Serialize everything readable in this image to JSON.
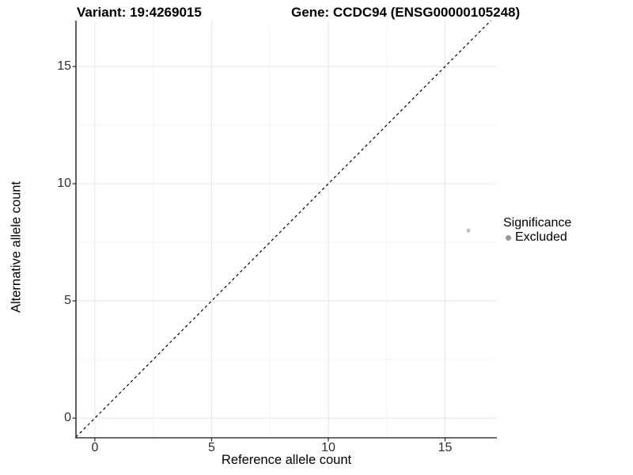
{
  "chart_data": {
    "type": "scatter",
    "title_left": "Variant: 19:4269015",
    "title_right": "Gene: CCDC94 (ENSG00000105248)",
    "xlabel": "Reference allele count",
    "ylabel": "Alternative allele count",
    "x_ticks": [
      0,
      5,
      10,
      15
    ],
    "y_ticks": [
      0,
      5,
      10,
      15
    ],
    "x_minor": [
      2.5,
      7.5,
      12.5
    ],
    "y_minor": [
      2.5,
      7.5,
      12.5
    ],
    "xlim": [
      -0.81,
      17.22
    ],
    "ylim": [
      -0.84,
      16.96
    ],
    "grid": true,
    "reference_line": {
      "type": "identity y=x",
      "style": "dashed",
      "color": "#000000"
    },
    "series": [
      {
        "name": "Excluded",
        "color": "#c1c1c1",
        "point_radius": 2.5,
        "points": [
          {
            "x": 16,
            "y": 8
          }
        ]
      }
    ],
    "legend": {
      "title": "Significance",
      "position": "right",
      "entries": [
        {
          "label": "Excluded",
          "color": "#9b9b9b",
          "icon": "point-icon"
        }
      ]
    }
  },
  "colors": {
    "background": "#ffffff",
    "grid_major": "#e9e9e9",
    "grid_minor": "#f4f4f4",
    "axis_line": "#383838",
    "tick_mark": "#333333",
    "tick_text": "#2e2e2e",
    "title_text": "#000000"
  }
}
